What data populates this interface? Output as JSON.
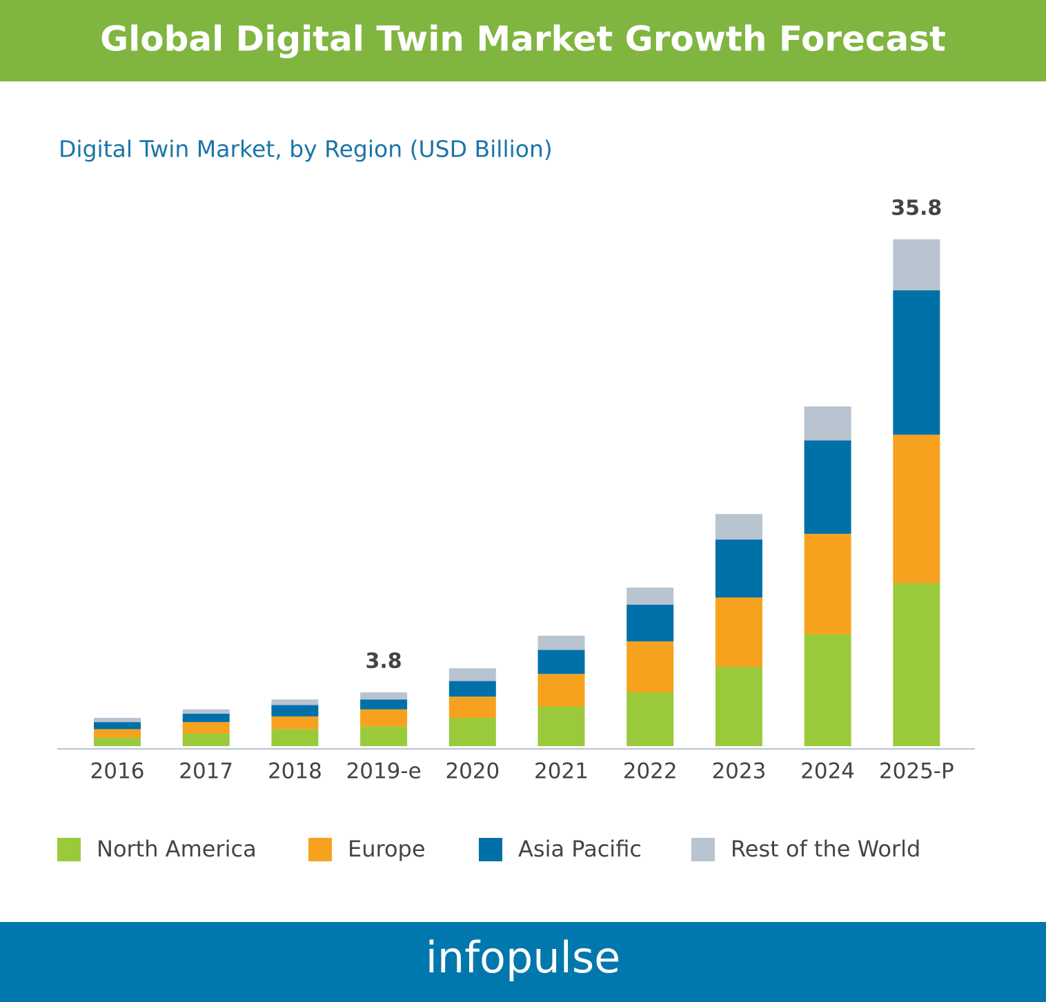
{
  "chart_data": {
    "type": "stacked_bar",
    "title": "Global Digital Twin Market Growth Forecast",
    "subtitle": "Digital Twin Market, by Region (USD Billion)",
    "categories": [
      "2016",
      "2017",
      "2018",
      "2019-e",
      "2020",
      "2021",
      "2022",
      "2023",
      "2024",
      "2025-P"
    ],
    "series": [
      {
        "name": "North America",
        "color": "#9aca3c",
        "values": [
          0.6,
          0.9,
          1.2,
          1.4,
          2.0,
          2.8,
          3.8,
          5.6,
          7.9,
          11.5
        ]
      },
      {
        "name": "Europe",
        "color": "#f7a21e",
        "values": [
          0.6,
          0.8,
          0.9,
          1.2,
          1.5,
          2.3,
          3.6,
          4.9,
          7.1,
          10.5
        ]
      },
      {
        "name": "Asia Pacific",
        "color": "#0070a8",
        "values": [
          0.5,
          0.6,
          0.8,
          0.7,
          1.1,
          1.7,
          2.6,
          4.1,
          6.6,
          10.2
        ]
      },
      {
        "name": "Rest of the World",
        "color": "#b8c4d0",
        "values": [
          0.3,
          0.3,
          0.4,
          0.5,
          0.9,
          1.0,
          1.2,
          1.8,
          2.4,
          3.6
        ]
      }
    ],
    "totals": [
      null,
      null,
      null,
      3.8,
      null,
      null,
      null,
      null,
      null,
      35.8
    ],
    "ylim": [
      0,
      36
    ],
    "legend": "bottom",
    "brand": "infopulse"
  }
}
